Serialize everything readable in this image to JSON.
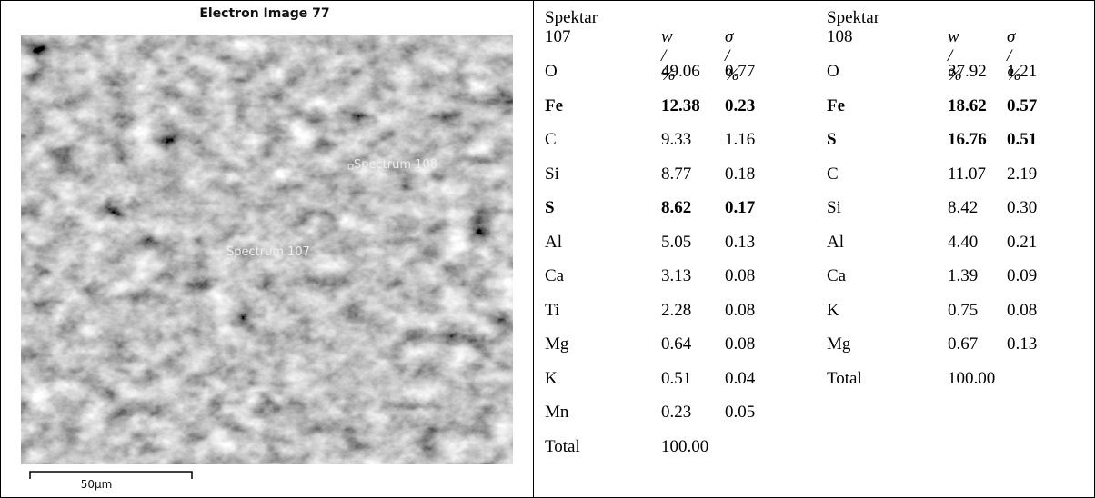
{
  "image": {
    "title": "Electron Image 77",
    "labels": [
      "Spectrum 108",
      "Spectrum 107"
    ],
    "scale": "50µm"
  },
  "tables": [
    {
      "header": [
        "Spektar 107",
        "w / %",
        "σ / %"
      ],
      "bold_rows": [
        1,
        4
      ],
      "rows": [
        [
          "O",
          "49.06",
          "0.77"
        ],
        [
          "Fe",
          "12.38",
          "0.23"
        ],
        [
          "C",
          "9.33",
          "1.16"
        ],
        [
          "Si",
          "8.77",
          "0.18"
        ],
        [
          "S",
          "8.62",
          "0.17"
        ],
        [
          "Al",
          "5.05",
          "0.13"
        ],
        [
          "Ca",
          "3.13",
          "0.08"
        ],
        [
          "Ti",
          "2.28",
          "0.08"
        ],
        [
          "Mg",
          "0.64",
          "0.08"
        ],
        [
          "K",
          "0.51",
          "0.04"
        ],
        [
          "Mn",
          "0.23",
          "0.05"
        ],
        [
          "Total",
          "100.00",
          null
        ]
      ]
    },
    {
      "header": [
        "Spektar 108",
        "w / %",
        "σ / %"
      ],
      "bold_rows": [
        1,
        2
      ],
      "rows": [
        [
          "O",
          "37.92",
          "1.21"
        ],
        [
          "Fe",
          "18.62",
          "0.57"
        ],
        [
          "S",
          "16.76",
          "0.51"
        ],
        [
          "C",
          "11.07",
          "2.19"
        ],
        [
          "Si",
          "8.42",
          "0.30"
        ],
        [
          "Al",
          "4.40",
          "0.21"
        ],
        [
          "Ca",
          "1.39",
          "0.09"
        ],
        [
          "K",
          "0.75",
          "0.08"
        ],
        [
          "Mg",
          "0.67",
          "0.13"
        ],
        [
          "Total",
          "100.00",
          null
        ]
      ]
    }
  ]
}
